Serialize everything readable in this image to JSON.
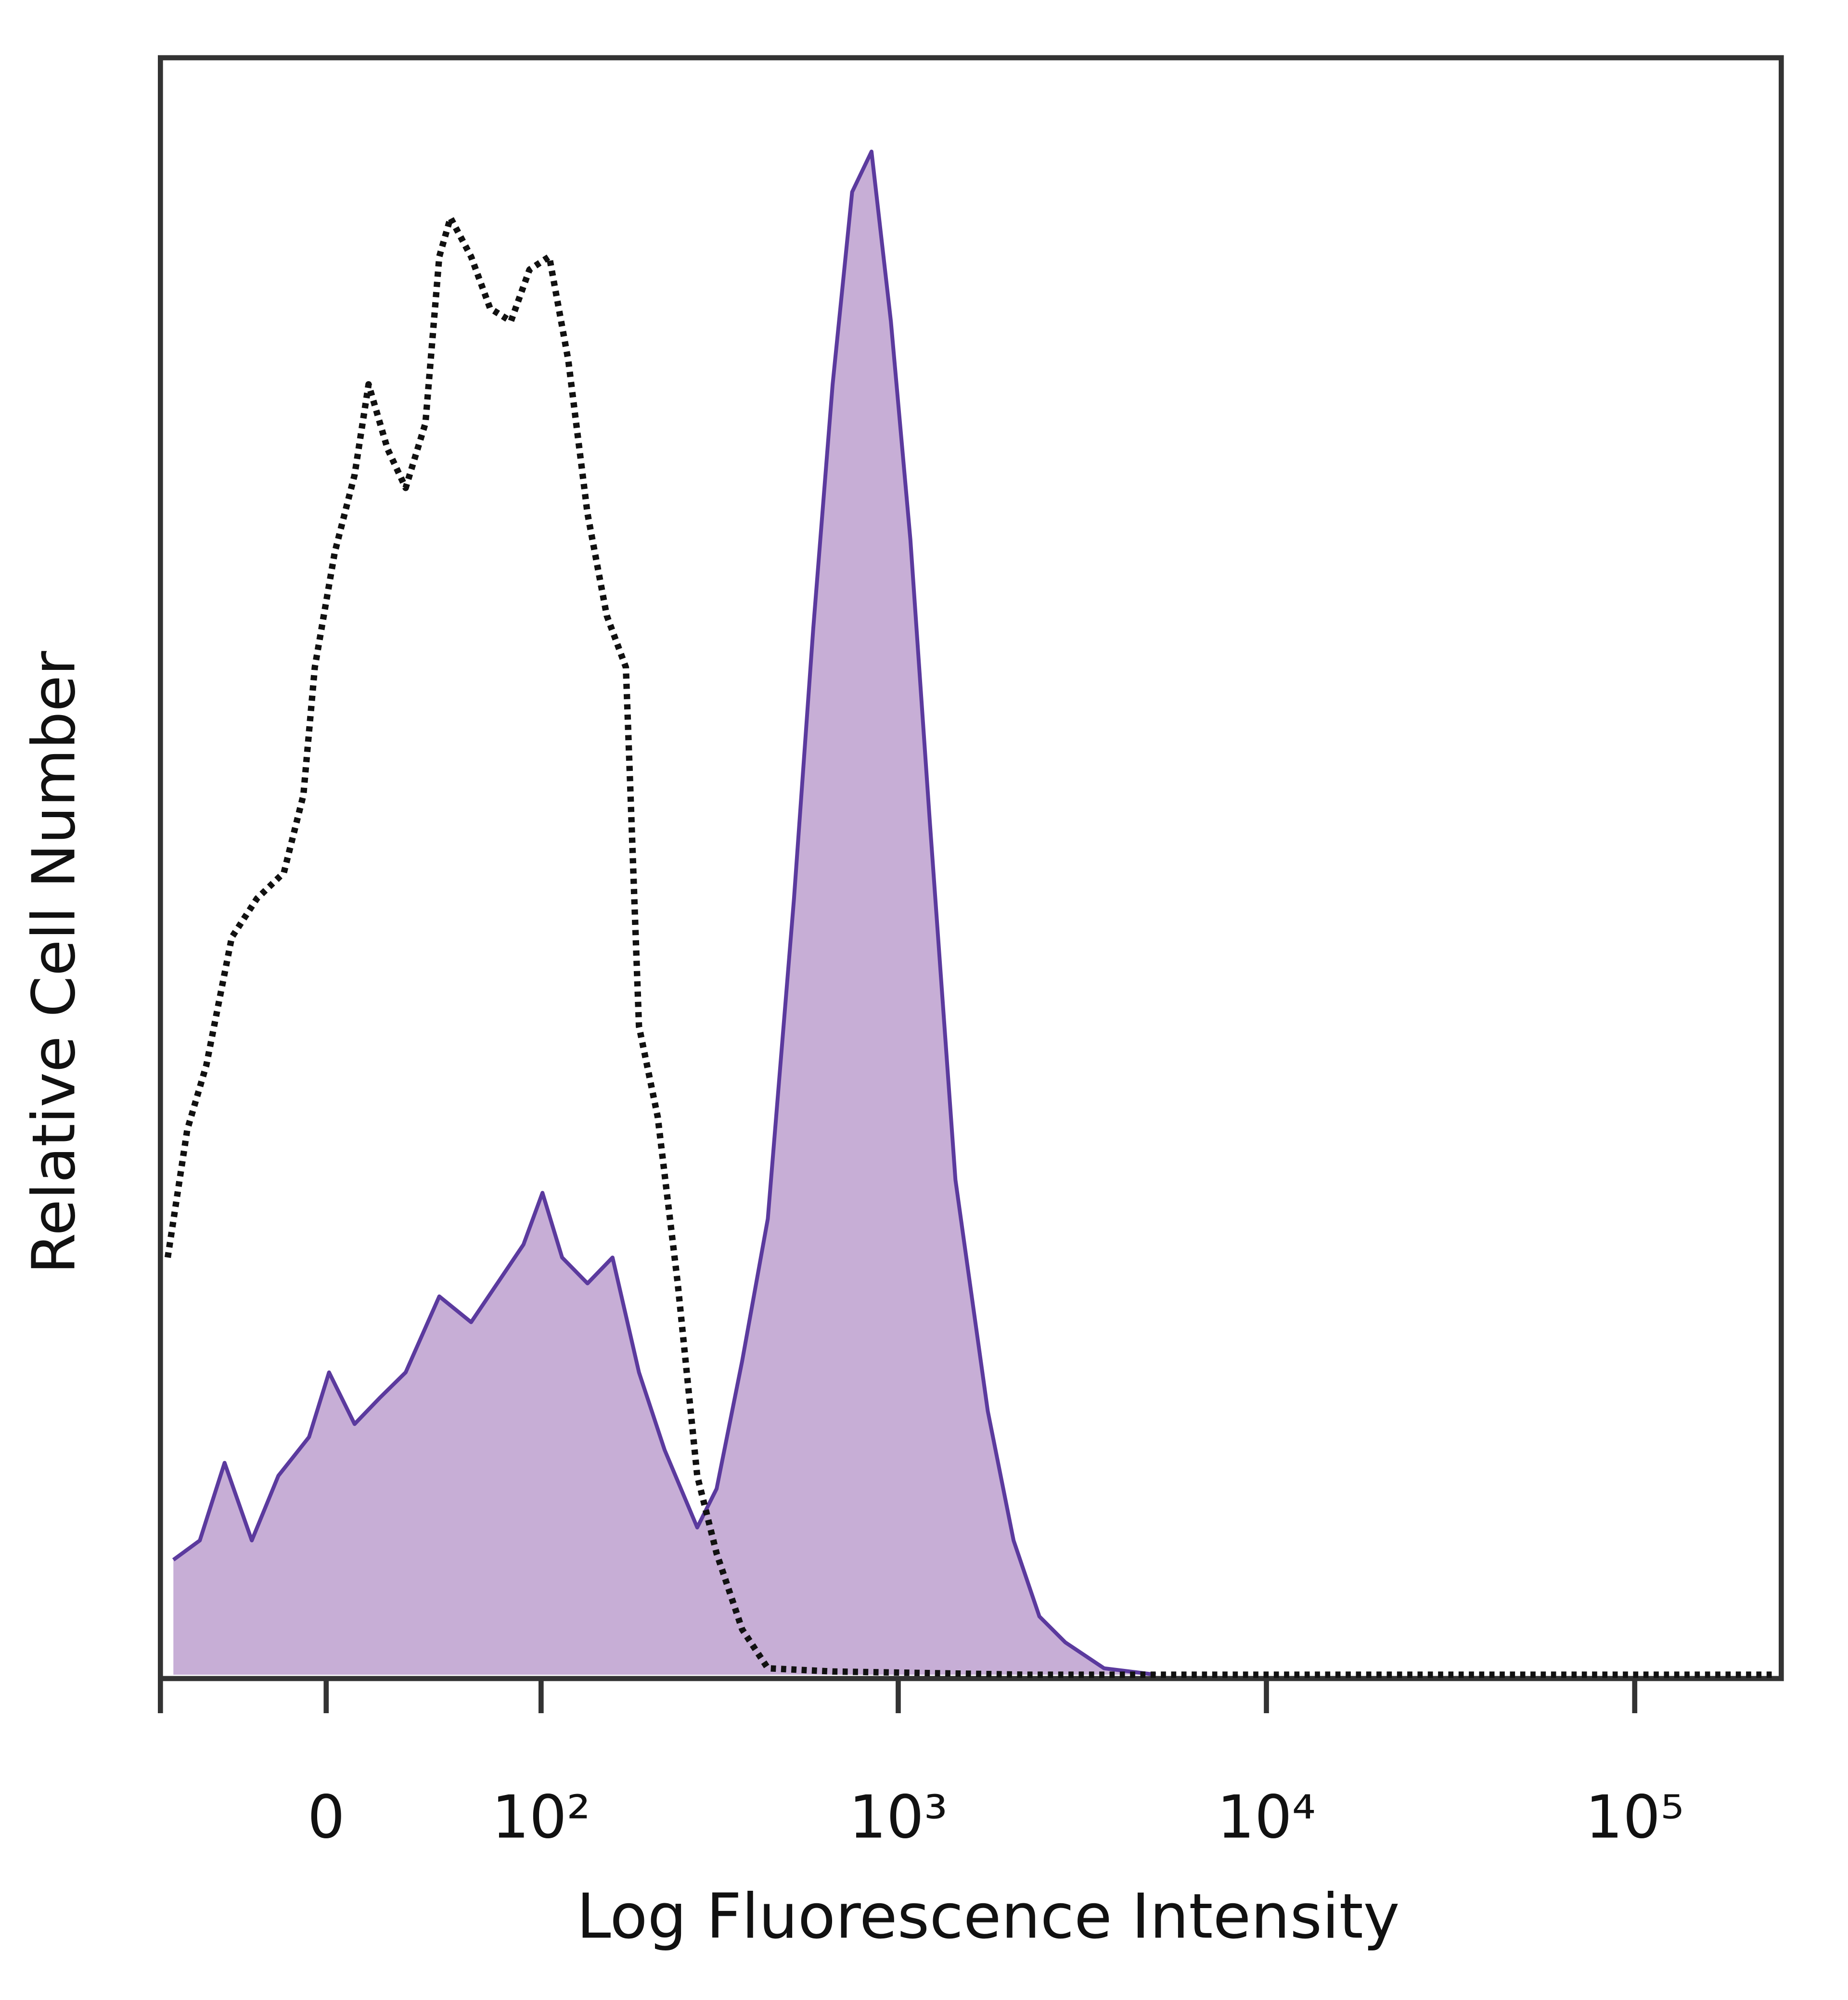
{
  "chart_data": {
    "type": "histogram-overlay",
    "x_label": "Log Fluorescence Intensity",
    "y_label": "Relative Cell Number",
    "xscale": "biexponential",
    "xlim": [
      -69,
      250000
    ],
    "ylim": [
      0,
      100
    ],
    "xticks": [
      {
        "value": -69,
        "label": ""
      },
      0,
      {
        "value": 100,
        "label": "10²"
      },
      {
        "value": 1000,
        "label": "10³"
      },
      {
        "value": 10000,
        "label": "10⁴"
      },
      {
        "value": 100000,
        "label": "10⁵"
      }
    ],
    "series": [
      {
        "style": "dotted",
        "color": "#111111",
        "x": [
          -65,
          -55,
          -46,
          -35,
          -25,
          -15,
          -8,
          -4,
          3,
          10,
          15,
          22,
          29,
          37,
          43,
          48,
          58,
          68,
          80,
          92,
          106,
          121,
          138,
          157,
          178,
          194,
          219,
          249,
          282,
          319,
          375,
          441,
          663,
          2229,
          239700
        ],
        "values": [
          25.8,
          33.7,
          37.7,
          45.6,
          48.0,
          49.6,
          54.4,
          62.3,
          69.4,
          74.2,
          79.8,
          75.8,
          73.4,
          77.4,
          87.7,
          90.1,
          87.7,
          84.5,
          83.7,
          86.9,
          87.7,
          81.3,
          71.8,
          65.5,
          62.3,
          40.1,
          34.5,
          24.2,
          12.3,
          7.5,
          2.8,
          0.4,
          0.2,
          0,
          0
        ]
      },
      {
        "style": "filled",
        "color": "#5b3a9e",
        "fill_color": "#c7aed6",
        "x": [
          -62,
          -49,
          -38,
          -27,
          -17,
          -6,
          1,
          10,
          19,
          29,
          43,
          58,
          72,
          88,
          101,
          116,
          138,
          163,
          194,
          229,
          282,
          319,
          375,
          441,
          520,
          587,
          663,
          749,
          846,
          955,
          1079,
          1218,
          1431,
          1752,
          2058,
          2419,
          2845,
          3623,
          5006
        ],
        "values": [
          7.1,
          8.3,
          13.1,
          8.3,
          12.3,
          14.7,
          18.7,
          15.5,
          17.1,
          18.7,
          23.4,
          21.8,
          24.2,
          26.6,
          29.8,
          25.8,
          24.2,
          25.8,
          18.7,
          13.9,
          9.1,
          11.5,
          19.4,
          28.2,
          48.0,
          64.7,
          79.8,
          91.7,
          94.2,
          83.7,
          70.2,
          52.8,
          30.6,
          16.3,
          8.3,
          3.6,
          2.0,
          0.4,
          0
        ]
      }
    ]
  }
}
